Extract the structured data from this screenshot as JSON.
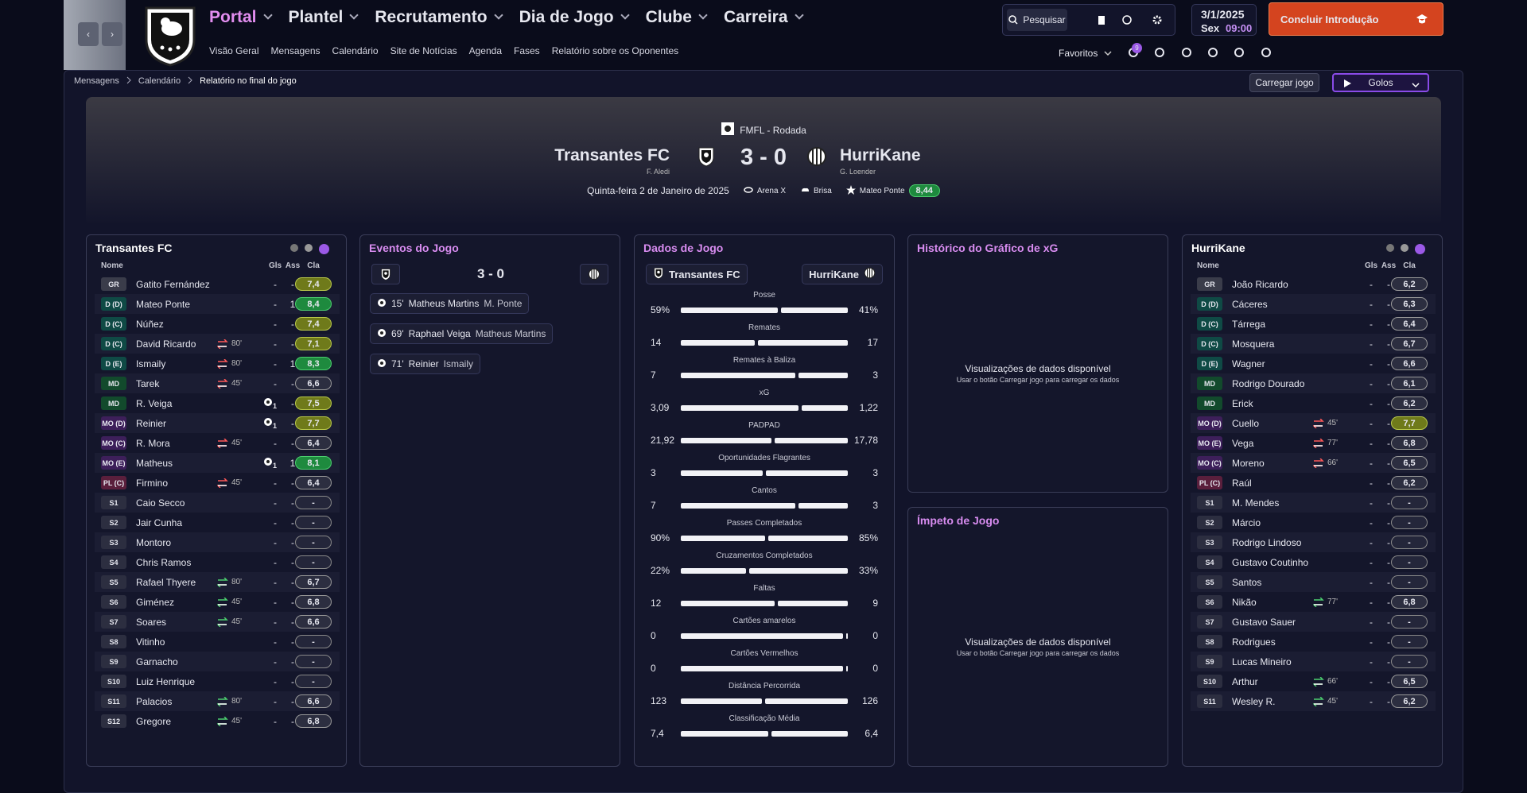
{
  "nav": {
    "menu": [
      "Portal",
      "Plantel",
      "Recrutamento",
      "Dia de Jogo",
      "Clube",
      "Carreira"
    ],
    "submenu": [
      "Visão Geral",
      "Mensagens",
      "Calendário",
      "Site de Notícias",
      "Agenda",
      "Fases",
      "Relatório sobre os Oponentes"
    ],
    "search": "Pesquisar",
    "date": "3/1/2025",
    "day": "Sex",
    "time": "09:00",
    "cta": "Concluir Introdução",
    "favorites": "Favoritos",
    "badge": "9"
  },
  "breadcrumb": [
    "Mensagens",
    "Calendário",
    "Relatório no final do jogo"
  ],
  "actions": {
    "load": "Carregar jogo",
    "view": "Golos"
  },
  "match": {
    "competition": "FMFL - Rodada",
    "home": "Transantes FC",
    "home_manager": "F. Aledi",
    "score": "3 - 0",
    "away": "HurriKane",
    "away_manager": "G. Loender",
    "date": "Quinta-feira 2 de Janeiro de 2025",
    "stadium": "Arena X",
    "weather": "Brisa",
    "potm": "Mateo Ponte",
    "potm_rating": "8,44"
  },
  "columns": {
    "name": "Nome",
    "goals": "Gls",
    "assists": "Ass",
    "rating": "Cla"
  },
  "home_lineup": {
    "team": "Transantes FC",
    "players": [
      {
        "pos": "GR",
        "name": "Gatito Fernández",
        "goals": "-",
        "assists": "-",
        "rating": "7,4"
      },
      {
        "pos": "D (D)",
        "name": "Mateo Ponte",
        "goals": "-",
        "assists": "1",
        "rating": "8,4"
      },
      {
        "pos": "D (C)",
        "name": "Núñez",
        "goals": "-",
        "assists": "-",
        "rating": "7,4"
      },
      {
        "pos": "D (C)",
        "name": "David Ricardo",
        "sub_off": "80'",
        "goals": "-",
        "assists": "-",
        "rating": "7,1"
      },
      {
        "pos": "D (E)",
        "name": "Ismaily",
        "sub_off": "80'",
        "goals": "-",
        "assists": "1",
        "rating": "8,3"
      },
      {
        "pos": "MD",
        "name": "Tarek",
        "sub_off": "45'",
        "goals": "-",
        "assists": "-",
        "rating": "6,6"
      },
      {
        "pos": "MD",
        "name": "R. Veiga",
        "goals": "1",
        "assists": "-",
        "rating": "7,5"
      },
      {
        "pos": "MO (D)",
        "name": "Reinier",
        "goals": "1",
        "assists": "-",
        "rating": "7,7"
      },
      {
        "pos": "MO (C)",
        "name": "R. Mora",
        "sub_off": "45'",
        "goals": "-",
        "assists": "-",
        "rating": "6,4"
      },
      {
        "pos": "MO (E)",
        "name": "Matheus",
        "goals": "1",
        "assists": "1",
        "rating": "8,1"
      },
      {
        "pos": "PL (C)",
        "name": "Firmino",
        "sub_off": "45'",
        "goals": "-",
        "assists": "-",
        "rating": "6,4"
      },
      {
        "pos": "S1",
        "name": "Caio Secco",
        "goals": "-",
        "assists": "-",
        "rating": "-"
      },
      {
        "pos": "S2",
        "name": "Jair Cunha",
        "goals": "-",
        "assists": "-",
        "rating": "-"
      },
      {
        "pos": "S3",
        "name": "Montoro",
        "goals": "-",
        "assists": "-",
        "rating": "-"
      },
      {
        "pos": "S4",
        "name": "Chris Ramos",
        "goals": "-",
        "assists": "-",
        "rating": "-"
      },
      {
        "pos": "S5",
        "name": "Rafael Thyere",
        "sub_on": "80'",
        "goals": "-",
        "assists": "-",
        "rating": "6,7"
      },
      {
        "pos": "S6",
        "name": "Giménez",
        "sub_on": "45'",
        "goals": "-",
        "assists": "-",
        "rating": "6,8"
      },
      {
        "pos": "S7",
        "name": "Soares",
        "sub_on": "45'",
        "goals": "-",
        "assists": "-",
        "rating": "6,6"
      },
      {
        "pos": "S8",
        "name": "Vitinho",
        "goals": "-",
        "assists": "-",
        "rating": "-"
      },
      {
        "pos": "S9",
        "name": "Garnacho",
        "goals": "-",
        "assists": "-",
        "rating": "-"
      },
      {
        "pos": "S10",
        "name": "Luiz Henrique",
        "goals": "-",
        "assists": "-",
        "rating": "-"
      },
      {
        "pos": "S11",
        "name": "Palacios",
        "sub_on": "80'",
        "goals": "-",
        "assists": "-",
        "rating": "6,6"
      },
      {
        "pos": "S12",
        "name": "Gregore",
        "sub_on": "45'",
        "goals": "-",
        "assists": "-",
        "rating": "6,8"
      }
    ]
  },
  "away_lineup": {
    "team": "HurriKane",
    "players": [
      {
        "pos": "GR",
        "name": "João Ricardo",
        "goals": "-",
        "assists": "-",
        "rating": "6,2"
      },
      {
        "pos": "D (D)",
        "name": "Cáceres",
        "goals": "-",
        "assists": "-",
        "rating": "6,3"
      },
      {
        "pos": "D (C)",
        "name": "Tárrega",
        "goals": "-",
        "assists": "-",
        "rating": "6,4"
      },
      {
        "pos": "D (C)",
        "name": "Mosquera",
        "goals": "-",
        "assists": "-",
        "rating": "6,7"
      },
      {
        "pos": "D (E)",
        "name": "Wagner",
        "goals": "-",
        "assists": "-",
        "rating": "6,6"
      },
      {
        "pos": "MD",
        "name": "Rodrigo Dourado",
        "goals": "-",
        "assists": "-",
        "rating": "6,1"
      },
      {
        "pos": "MD",
        "name": "Erick",
        "goals": "-",
        "assists": "-",
        "rating": "6,2"
      },
      {
        "pos": "MO (D)",
        "name": "Cuello",
        "sub_off": "45'",
        "goals": "-",
        "assists": "-",
        "rating": "7,7"
      },
      {
        "pos": "MO (E)",
        "name": "Vega",
        "sub_off": "77'",
        "goals": "-",
        "assists": "-",
        "rating": "6,8"
      },
      {
        "pos": "MO (C)",
        "name": "Moreno",
        "sub_off": "66'",
        "goals": "-",
        "assists": "-",
        "rating": "6,5"
      },
      {
        "pos": "PL (C)",
        "name": "Raúl",
        "goals": "-",
        "assists": "-",
        "rating": "6,2"
      },
      {
        "pos": "S1",
        "name": "M. Mendes",
        "goals": "-",
        "assists": "-",
        "rating": "-"
      },
      {
        "pos": "S2",
        "name": "Márcio",
        "goals": "-",
        "assists": "-",
        "rating": "-"
      },
      {
        "pos": "S3",
        "name": "Rodrigo Lindoso",
        "goals": "-",
        "assists": "-",
        "rating": "-"
      },
      {
        "pos": "S4",
        "name": "Gustavo Coutinho",
        "goals": "-",
        "assists": "-",
        "rating": "-"
      },
      {
        "pos": "S5",
        "name": "Santos",
        "goals": "-",
        "assists": "-",
        "rating": "-"
      },
      {
        "pos": "S6",
        "name": "Nikão",
        "sub_on": "77'",
        "goals": "-",
        "assists": "-",
        "rating": "6,8"
      },
      {
        "pos": "S7",
        "name": "Gustavo Sauer",
        "goals": "-",
        "assists": "-",
        "rating": "-"
      },
      {
        "pos": "S8",
        "name": "Rodrigues",
        "goals": "-",
        "assists": "-",
        "rating": "-"
      },
      {
        "pos": "S9",
        "name": "Lucas Mineiro",
        "goals": "-",
        "assists": "-",
        "rating": "-"
      },
      {
        "pos": "S10",
        "name": "Arthur",
        "sub_on": "66'",
        "goals": "-",
        "assists": "-",
        "rating": "6,5"
      },
      {
        "pos": "S11",
        "name": "Wesley R.",
        "sub_on": "45'",
        "goals": "-",
        "assists": "-",
        "rating": "6,2"
      }
    ]
  },
  "events": {
    "title": "Eventos do Jogo",
    "score": "3 - 0",
    "items": [
      {
        "minute": "15'",
        "scorer": "Matheus Martins",
        "assist": "M. Ponte"
      },
      {
        "minute": "69'",
        "scorer": "Raphael Veiga",
        "assist": "Matheus Martins"
      },
      {
        "minute": "71'",
        "scorer": "Reinier",
        "assist": "Ismaily"
      }
    ]
  },
  "stats": {
    "title": "Dados de Jogo",
    "home": "Transantes FC",
    "away": "HurriKane",
    "rows": [
      {
        "label": "Posse",
        "home": "59%",
        "away": "41%"
      },
      {
        "label": "Remates",
        "home": "14",
        "away": "17"
      },
      {
        "label": "Remates à Baliza",
        "home": "7",
        "away": "3"
      },
      {
        "label": "xG",
        "home": "3,09",
        "away": "1,22"
      },
      {
        "label": "PADPAD",
        "home": "21,92",
        "away": "17,78"
      },
      {
        "label": "Oportunidades Flagrantes",
        "home": "3",
        "away": "3"
      },
      {
        "label": "Cantos",
        "home": "7",
        "away": "3"
      },
      {
        "label": "Passes Completados",
        "home": "90%",
        "away": "85%"
      },
      {
        "label": "Cruzamentos Completados",
        "home": "22%",
        "away": "33%"
      },
      {
        "label": "Faltas",
        "home": "12",
        "away": "9"
      },
      {
        "label": "Cartões amarelos",
        "home": "0",
        "away": "0"
      },
      {
        "label": "Cartões Vermelhos",
        "home": "0",
        "away": "0"
      },
      {
        "label": "Distância Percorrida",
        "home": "123",
        "away": "126"
      },
      {
        "label": "Classificação Média",
        "home": "7,4",
        "away": "6,4"
      }
    ]
  },
  "xg": {
    "title": "Histórico do Gráfico de xG",
    "message": "Visualizações de dados disponível",
    "hint": "Usar o botão Carregar jogo para carregar os dados"
  },
  "momentum": {
    "title": "Ímpeto de Jogo",
    "message": "Visualizações de dados disponível",
    "hint": "Usar o botão Carregar jogo para carregar os dados"
  }
}
